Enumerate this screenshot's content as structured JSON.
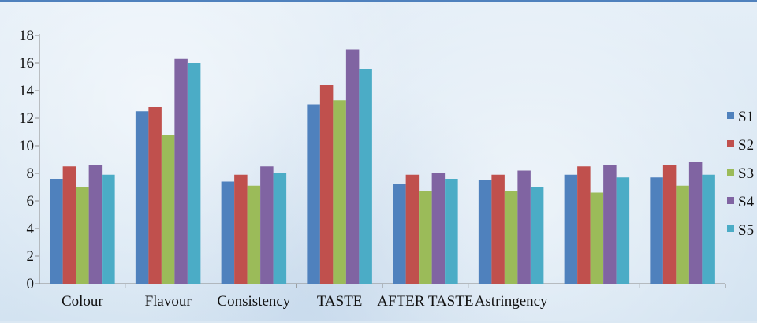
{
  "chart_data": {
    "type": "bar",
    "categories": [
      "Colour",
      "Flavour",
      "Consistency",
      "TASTE",
      "AFTER TASTE",
      "Astringency",
      "",
      ""
    ],
    "series": [
      {
        "name": "S1",
        "color": "#4f81bd",
        "values": [
          7.6,
          12.5,
          7.4,
          13.0,
          7.2,
          7.5,
          7.9,
          7.7
        ]
      },
      {
        "name": "S2",
        "color": "#c0504d",
        "values": [
          8.5,
          12.8,
          7.9,
          14.4,
          7.9,
          7.9,
          8.5,
          8.6
        ]
      },
      {
        "name": "S3",
        "color": "#9bbb59",
        "values": [
          7.0,
          10.8,
          7.1,
          13.3,
          6.7,
          6.7,
          6.6,
          7.1
        ]
      },
      {
        "name": "S4",
        "color": "#8064a2",
        "values": [
          8.6,
          16.3,
          8.5,
          17.0,
          8.0,
          8.2,
          8.6,
          8.8
        ]
      },
      {
        "name": "S5",
        "color": "#4bacc6",
        "values": [
          7.9,
          16.0,
          8.0,
          15.6,
          7.6,
          7.0,
          7.7,
          7.9
        ]
      }
    ],
    "ylim": [
      0,
      18
    ],
    "yticks": [
      "0",
      "2",
      "4",
      "6",
      "8",
      "10",
      "12",
      "14",
      "16",
      "18"
    ],
    "legend": "right",
    "grid": false
  }
}
